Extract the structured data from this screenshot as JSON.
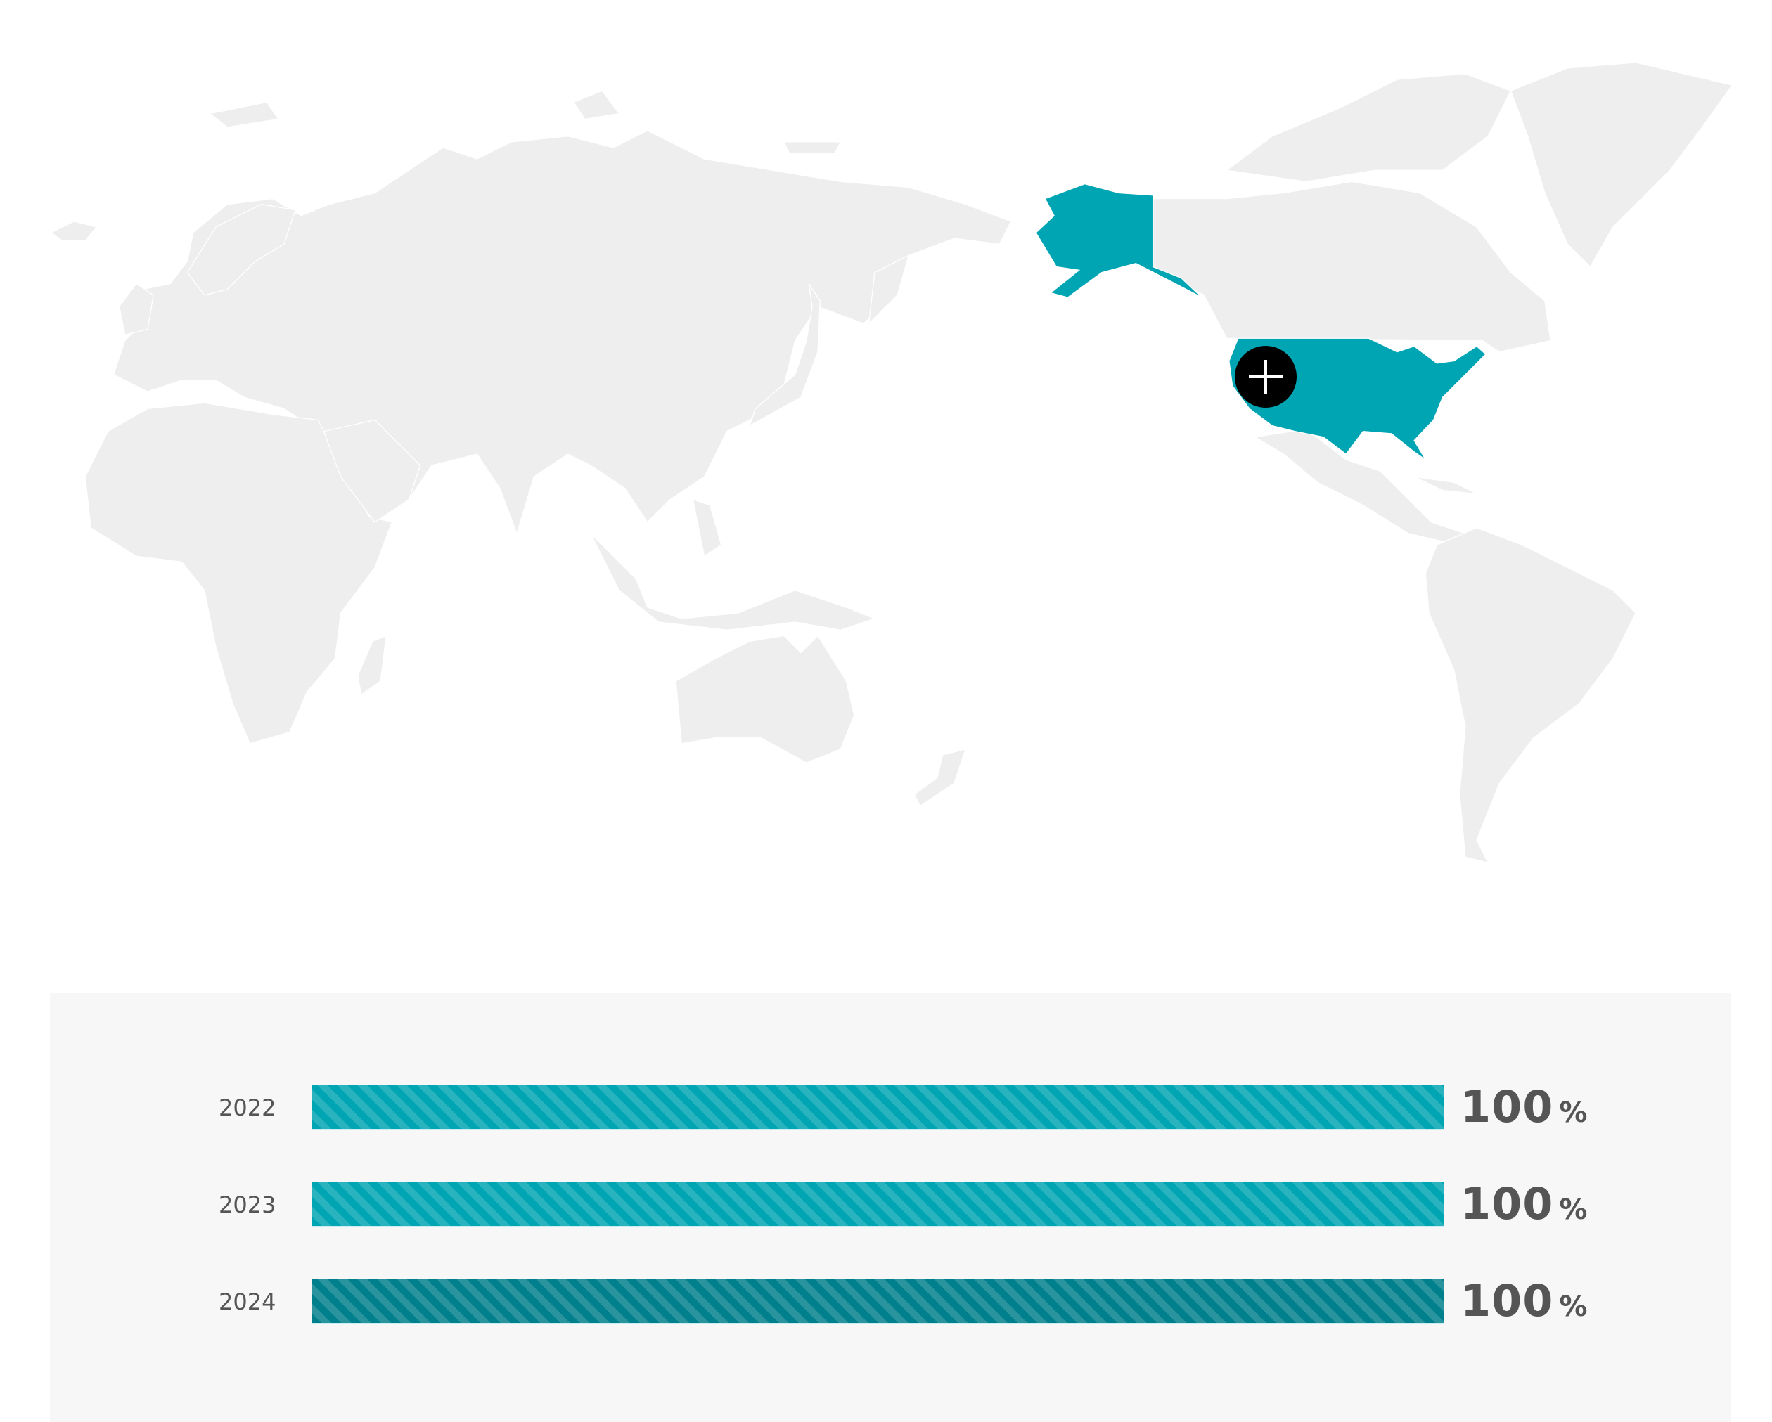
{
  "map": {
    "highlighted_country": "United States",
    "highlight_color": "#00a5b3",
    "land_color": "#eeeeee",
    "marker_icon": "plus-icon"
  },
  "stats": {
    "rows": [
      {
        "year": "2022",
        "value": "100",
        "unit": "%",
        "percent": 100,
        "color": "#00a5b3"
      },
      {
        "year": "2023",
        "value": "100",
        "unit": "%",
        "percent": 100,
        "color": "#00a5b3"
      },
      {
        "year": "2024",
        "value": "100",
        "unit": "%",
        "percent": 100,
        "color": "#00808c"
      }
    ]
  }
}
